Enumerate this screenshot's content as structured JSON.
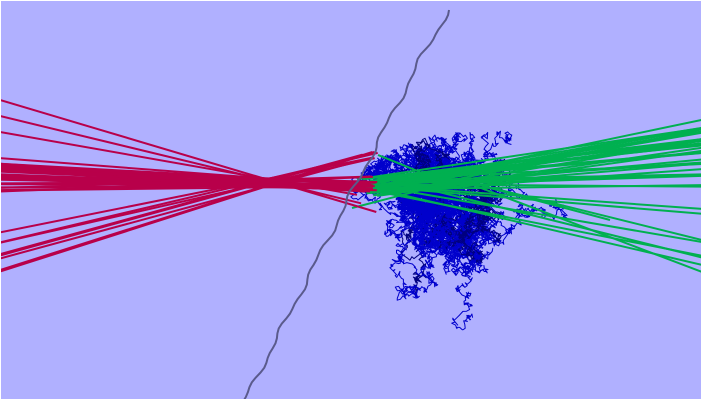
{
  "scene": {
    "background_color": "#b0b0ff",
    "frame_color": "#ffffff",
    "interface_color": "#5a5a8c",
    "incident_ray_color": "#b8004a",
    "transmitted_ray_color": "#00b050",
    "random_walk_color": "#0000cc",
    "random_walk_dark_color": "#000080",
    "incident_ray_count": 40,
    "transmitted_ray_count": 36,
    "random_walk_count": 60
  }
}
